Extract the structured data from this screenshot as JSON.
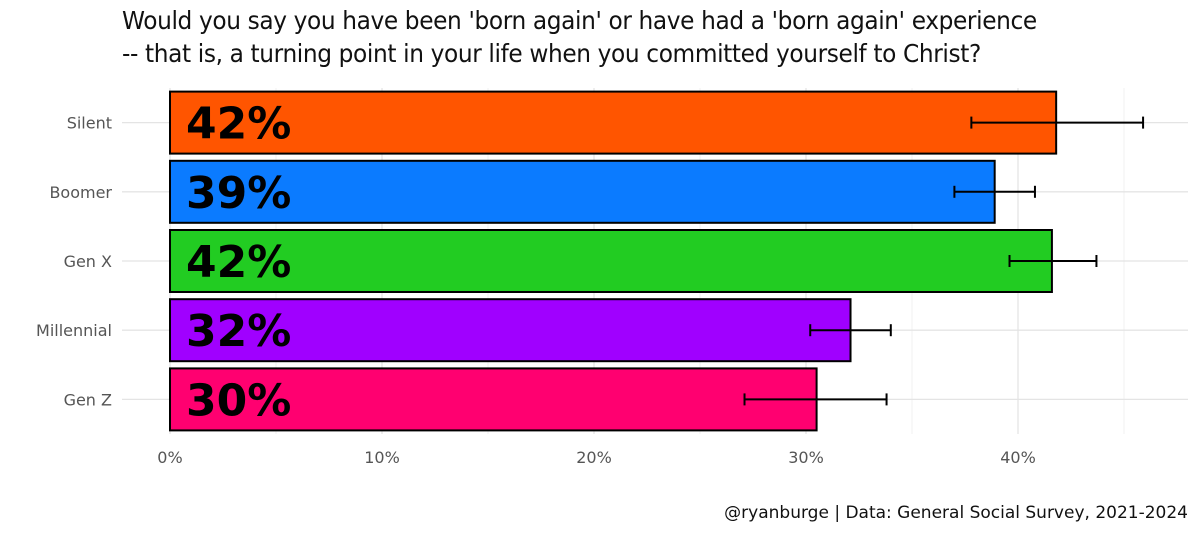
{
  "title_lines": [
    "Would you say you have been 'born again' or have had a 'born again' experience",
    "-- that is, a turning point in your life when you committed yourself to Christ?"
  ],
  "caption": "@ryanburge | Data: General Social Survey, 2021-2024",
  "chart_data": {
    "type": "bar",
    "orientation": "horizontal",
    "title": "Would you say you have been 'born again' or have had a 'born again' experience -- that is, a turning point in your life when you committed yourself to Christ?",
    "categories": [
      "Silent",
      "Boomer",
      "Gen X",
      "Millennial",
      "Gen Z"
    ],
    "values": [
      0.418,
      0.389,
      0.416,
      0.321,
      0.305
    ],
    "labels": [
      "42%",
      "39%",
      "42%",
      "32%",
      "30%"
    ],
    "error_low": [
      0.378,
      0.37,
      0.396,
      0.302,
      0.271
    ],
    "error_high": [
      0.459,
      0.408,
      0.437,
      0.34,
      0.338
    ],
    "colors": [
      "#ff5500",
      "#0b7bff",
      "#22cc22",
      "#a000ff",
      "#ff0070"
    ],
    "x_ticks": [
      0,
      0.1,
      0.2,
      0.3,
      0.4
    ],
    "x_tick_labels": [
      "0%",
      "10%",
      "20%",
      "30%",
      "40%"
    ],
    "xlim": [
      -0.023,
      0.48
    ],
    "grid": true,
    "xlabel": "",
    "ylabel": ""
  }
}
